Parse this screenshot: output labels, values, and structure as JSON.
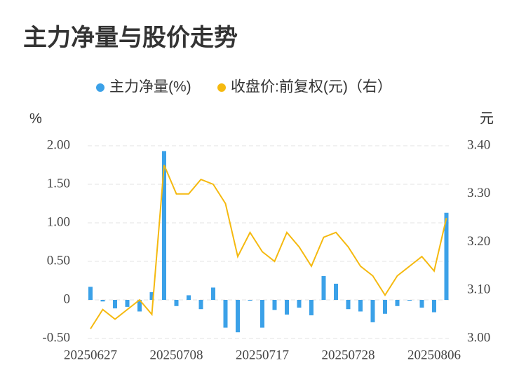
{
  "chart_data": {
    "type": "bar-line",
    "title": "主力净量与股价走势",
    "y_label": "%",
    "y2_label": "元",
    "categories": [
      "20250627",
      null,
      null,
      null,
      null,
      null,
      null,
      "20250708",
      null,
      null,
      null,
      null,
      null,
      null,
      "20250717",
      null,
      null,
      null,
      null,
      null,
      null,
      "20250728",
      null,
      null,
      null,
      null,
      null,
      null,
      "20250806",
      null
    ],
    "series": [
      {
        "name": "主力净量(%)",
        "type": "bar",
        "color": "#3ba1e8",
        "values": [
          0.17,
          -0.02,
          -0.11,
          -0.09,
          -0.15,
          0.1,
          1.93,
          -0.08,
          0.06,
          -0.12,
          0.16,
          -0.36,
          -0.42,
          -0.01,
          -0.36,
          -0.13,
          -0.19,
          -0.1,
          -0.2,
          0.31,
          0.21,
          -0.12,
          -0.15,
          -0.29,
          -0.18,
          -0.08,
          -0.01,
          -0.1,
          -0.16,
          1.13
        ]
      },
      {
        "name": "收盘价:前复权(元)（右）",
        "type": "line",
        "axis": "y2",
        "color": "#f5b90f",
        "values": [
          3.02,
          3.06,
          3.04,
          3.06,
          3.08,
          3.05,
          3.36,
          3.3,
          3.3,
          3.33,
          3.32,
          3.28,
          3.17,
          3.22,
          3.18,
          3.16,
          3.22,
          3.19,
          3.15,
          3.21,
          3.22,
          3.19,
          3.15,
          3.13,
          3.09,
          3.13,
          3.15,
          3.17,
          3.14,
          3.25
        ]
      }
    ],
    "ylim": [
      -0.5,
      2.0
    ],
    "yticks": [
      {
        "value": -0.5,
        "label": "-0.50"
      },
      0,
      {
        "value": 0.5,
        "label": "0.50"
      },
      {
        "value": 1.0,
        "label": "1.00"
      },
      {
        "value": 1.5,
        "label": "1.50"
      },
      {
        "value": 2.0,
        "label": "2.00"
      }
    ],
    "y2lim": [
      3.0,
      3.4
    ],
    "y2ticks": [
      {
        "value": 3.0,
        "label": "3.00"
      },
      {
        "value": 3.1,
        "label": "3.10"
      },
      {
        "value": 3.2,
        "label": "3.20"
      },
      {
        "value": 3.3,
        "label": "3.30"
      },
      {
        "value": 3.4,
        "label": "3.40"
      }
    ],
    "grid": true,
    "legend": "top"
  }
}
